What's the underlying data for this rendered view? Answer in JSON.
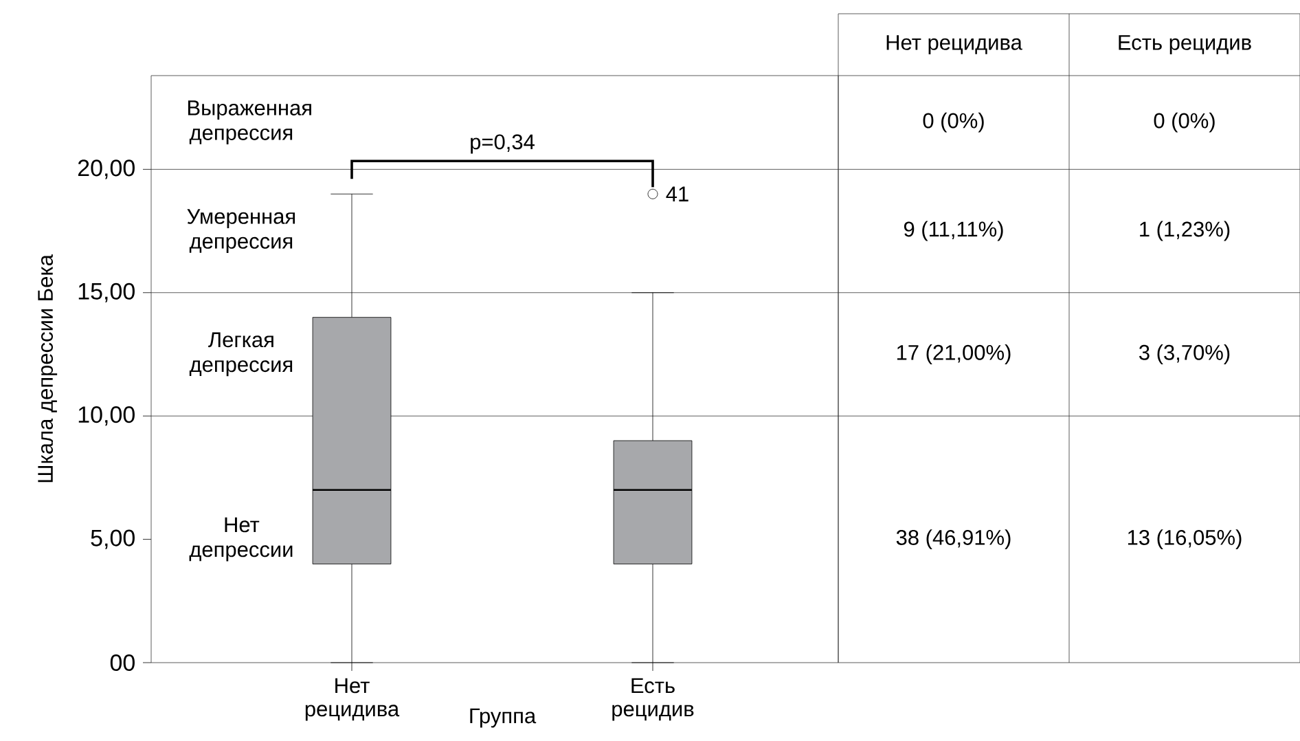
{
  "chart_data": {
    "type": "box",
    "categories": [
      "Нет рецидива",
      "Есть рецидив"
    ],
    "xlabel": "Группа",
    "ylabel": "Шкала депрессии Бека",
    "color": "#a7a8ab",
    "boxes": [
      {
        "low": 0,
        "q1": 4,
        "median": 7,
        "q3": 14,
        "high": 19
      },
      {
        "low": 0,
        "q1": 4,
        "median": 7,
        "q3": 9,
        "high": 15,
        "outliers": [
          19
        ]
      }
    ],
    "ylim": [
      0,
      23.8
    ],
    "yticks": [
      {
        "value": 0,
        "label": "00"
      },
      {
        "value": 5,
        "label": "5,00"
      },
      {
        "value": 10,
        "label": "10,00"
      },
      {
        "value": 15,
        "label": "15,00"
      },
      {
        "value": 20,
        "label": "20,00"
      }
    ],
    "ref_lines": [
      {
        "axis": "y",
        "value": 20
      },
      {
        "axis": "y",
        "value": 15
      },
      {
        "axis": "y",
        "value": 10
      }
    ],
    "annotations": [
      "p=0,34",
      "41",
      "Выраженная депрессия",
      "Умеренная депрессия",
      "Легкая депрессия",
      "Нет депрессии",
      "Нет рецидива",
      "Есть рецидив",
      "0 (0%)",
      "0 (0%)",
      "9 (11,11%)",
      "1 (1,23%)",
      "17 (21,00%)",
      "3 (3,70%)",
      "38 (46,91%)",
      "13 (16,05%)"
    ]
  }
}
